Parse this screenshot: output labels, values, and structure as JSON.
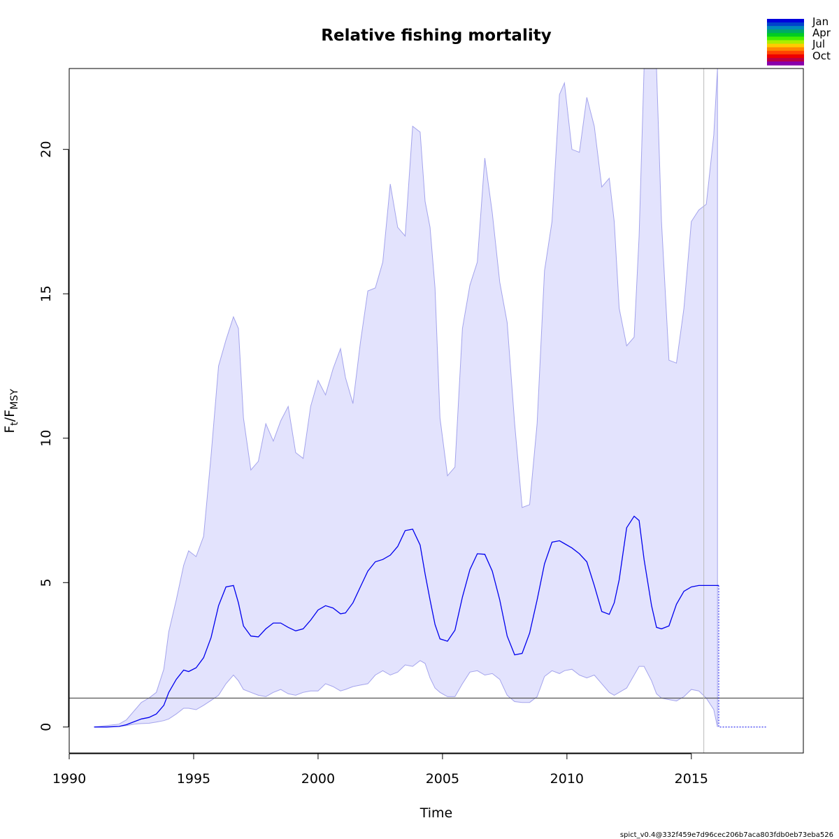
{
  "chart_data": {
    "type": "line",
    "title": "Relative fishing mortality",
    "xlabel": "Time",
    "ylabel": {
      "main": "F",
      "sub1": "t",
      "sep": "/F",
      "sub2": "MSY"
    },
    "xlim": [
      1990,
      2019.5
    ],
    "ylim": [
      -0.9,
      22.8
    ],
    "x_ticks": [
      1990,
      1995,
      2000,
      2005,
      2010,
      2015
    ],
    "y_ticks": [
      0,
      5,
      10,
      15,
      20
    ],
    "grid": false,
    "reference_line": {
      "y": 1,
      "color": "#555555"
    },
    "vertical_line": {
      "x": 2015.5,
      "color": "#bbbbbb"
    },
    "estimate": {
      "color": "#0000ee",
      "x": [
        1991.0,
        1991.5,
        1992.0,
        1992.3,
        1992.6,
        1992.9,
        1993.2,
        1993.5,
        1993.8,
        1994.0,
        1994.3,
        1994.6,
        1994.8,
        1995.1,
        1995.4,
        1995.7,
        1996.0,
        1996.3,
        1996.6,
        1996.8,
        1997.0,
        1997.3,
        1997.6,
        1997.9,
        1998.2,
        1998.5,
        1998.8,
        1999.1,
        1999.4,
        1999.7,
        2000.0,
        2000.3,
        2000.6,
        2000.9,
        2001.1,
        2001.4,
        2001.7,
        2002.0,
        2002.3,
        2002.6,
        2002.9,
        2003.2,
        2003.5,
        2003.8,
        2004.1,
        2004.3,
        2004.5,
        2004.7,
        2004.9,
        2005.2,
        2005.5,
        2005.8,
        2006.1,
        2006.4,
        2006.7,
        2007.0,
        2007.3,
        2007.6,
        2007.9,
        2008.2,
        2008.5,
        2008.8,
        2009.1,
        2009.4,
        2009.7,
        2009.9,
        2010.2,
        2010.5,
        2010.8,
        2011.1,
        2011.4,
        2011.7,
        2011.9,
        2012.1,
        2012.4,
        2012.7,
        2012.9,
        2013.1,
        2013.4,
        2013.6,
        2013.8,
        2014.1,
        2014.4,
        2014.7,
        2015.0,
        2015.3,
        2015.6,
        2016.0,
        2016.1
      ],
      "y": [
        0,
        0,
        0.02,
        0.08,
        0.18,
        0.28,
        0.33,
        0.45,
        0.75,
        1.2,
        1.65,
        1.97,
        1.92,
        2.05,
        2.4,
        3.1,
        4.2,
        4.85,
        4.9,
        4.3,
        3.5,
        3.15,
        3.12,
        3.4,
        3.6,
        3.6,
        3.45,
        3.33,
        3.4,
        3.7,
        4.05,
        4.2,
        4.12,
        3.92,
        3.95,
        4.3,
        4.85,
        5.4,
        5.72,
        5.8,
        5.95,
        6.25,
        6.8,
        6.85,
        6.3,
        5.3,
        4.4,
        3.55,
        3.05,
        2.97,
        3.35,
        4.5,
        5.45,
        6.0,
        5.98,
        5.4,
        4.4,
        3.15,
        2.5,
        2.55,
        3.25,
        4.4,
        5.65,
        6.4,
        6.45,
        6.35,
        6.2,
        6.0,
        5.72,
        4.9,
        4.0,
        3.9,
        4.3,
        5.1,
        6.9,
        7.3,
        7.15,
        5.8,
        4.2,
        3.45,
        3.4,
        3.5,
        4.25,
        4.7,
        4.85,
        4.9,
        4.9,
        4.9,
        4.9
      ]
    },
    "forecast": {
      "x": [
        2016.1,
        2018.0
      ],
      "y": [
        0,
        0
      ]
    },
    "confidence_band": {
      "fill": "#e3e3fd",
      "stroke": "#a4a4ec",
      "x": [
        1991.0,
        1992.0,
        1992.3,
        1992.6,
        1992.9,
        1993.2,
        1993.5,
        1993.8,
        1994.0,
        1994.3,
        1994.6,
        1994.8,
        1995.1,
        1995.4,
        1995.7,
        1996.0,
        1996.3,
        1996.6,
        1996.8,
        1997.0,
        1997.3,
        1997.6,
        1997.9,
        1998.2,
        1998.5,
        1998.8,
        1999.1,
        1999.4,
        1999.7,
        2000.0,
        2000.3,
        2000.6,
        2000.9,
        2001.1,
        2001.4,
        2001.7,
        2002.0,
        2002.3,
        2002.6,
        2002.9,
        2003.2,
        2003.5,
        2003.8,
        2004.1,
        2004.3,
        2004.5,
        2004.7,
        2004.9,
        2005.2,
        2005.5,
        2005.8,
        2006.1,
        2006.4,
        2006.7,
        2007.0,
        2007.3,
        2007.6,
        2007.9,
        2008.2,
        2008.5,
        2008.8,
        2009.1,
        2009.4,
        2009.7,
        2009.9,
        2010.2,
        2010.5,
        2010.8,
        2011.1,
        2011.4,
        2011.7,
        2011.9,
        2012.1,
        2012.4,
        2012.7,
        2012.9,
        2013.1,
        2013.4,
        2013.6,
        2013.8,
        2014.1,
        2014.4,
        2014.7,
        2015.0,
        2015.3,
        2015.6,
        2015.9,
        2016.05
      ],
      "upper": [
        0,
        0.1,
        0.25,
        0.55,
        0.85,
        1.0,
        1.2,
        2.0,
        3.3,
        4.4,
        5.6,
        6.1,
        5.9,
        6.6,
        9.4,
        12.5,
        13.4,
        14.2,
        13.8,
        10.7,
        8.9,
        9.2,
        10.5,
        9.9,
        10.6,
        11.1,
        9.5,
        9.3,
        11.1,
        12.0,
        11.5,
        12.4,
        13.1,
        12.1,
        11.2,
        13.3,
        15.1,
        15.2,
        16.1,
        18.8,
        17.3,
        17.0,
        20.8,
        20.6,
        18.2,
        17.3,
        15.2,
        10.7,
        8.7,
        9.0,
        13.8,
        15.3,
        16.1,
        19.7,
        17.8,
        15.4,
        14.0,
        10.5,
        7.6,
        7.7,
        10.5,
        15.8,
        17.5,
        21.9,
        22.3,
        20.0,
        19.9,
        21.8,
        20.8,
        18.7,
        19.0,
        17.5,
        14.5,
        13.2,
        13.5,
        17.0,
        22.8,
        22.8,
        22.8,
        17.5,
        12.7,
        12.6,
        14.5,
        17.5,
        17.9,
        18.1,
        20.5,
        22.8
      ],
      "lower": [
        0,
        0.02,
        0.05,
        0.1,
        0.12,
        0.13,
        0.17,
        0.22,
        0.28,
        0.45,
        0.65,
        0.65,
        0.6,
        0.75,
        0.92,
        1.1,
        1.5,
        1.8,
        1.6,
        1.3,
        1.2,
        1.1,
        1.05,
        1.2,
        1.3,
        1.15,
        1.1,
        1.2,
        1.25,
        1.25,
        1.5,
        1.4,
        1.25,
        1.3,
        1.4,
        1.45,
        1.5,
        1.8,
        1.95,
        1.8,
        1.9,
        2.15,
        2.1,
        2.3,
        2.2,
        1.7,
        1.35,
        1.2,
        1.05,
        1.05,
        1.5,
        1.9,
        1.95,
        1.8,
        1.85,
        1.65,
        1.1,
        0.88,
        0.85,
        0.85,
        1.05,
        1.75,
        1.95,
        1.85,
        1.95,
        2.0,
        1.8,
        1.7,
        1.8,
        1.5,
        1.2,
        1.1,
        1.2,
        1.35,
        1.8,
        2.1,
        2.1,
        1.6,
        1.15,
        1.0,
        0.95,
        0.9,
        1.05,
        1.3,
        1.25,
        1.0,
        0.6,
        0.0
      ]
    },
    "legend": {
      "position": "top-right",
      "labels": [
        "Jan",
        "Apr",
        "Jul",
        "Oct"
      ],
      "colors": [
        "#0000dd",
        "#0044cc",
        "#0088bb",
        "#00aa66",
        "#00cc22",
        "#44ee00",
        "#aaee00",
        "#ffcc00",
        "#ff8800",
        "#ff4400",
        "#ee0000",
        "#bb0044",
        "#8800aa"
      ]
    }
  },
  "footer": "spict_v0.4@332f459e7d96cec206b7aca803fdb0eb73eba526"
}
